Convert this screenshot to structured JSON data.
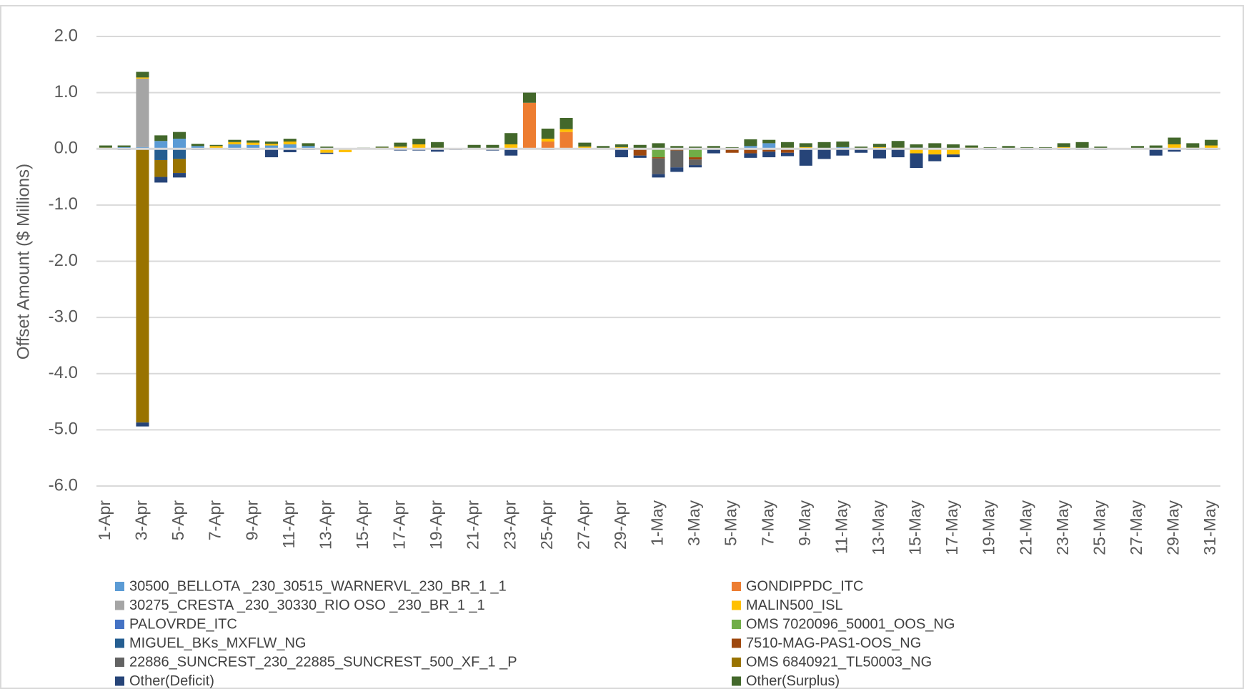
{
  "chart_data": {
    "type": "stacked_bar",
    "y_label": "Offset Amount ($ Millions)",
    "categories": [
      "1-Apr",
      null,
      "3-Apr",
      null,
      "5-Apr",
      null,
      "7-Apr",
      null,
      "9-Apr",
      null,
      "11-Apr",
      null,
      "13-Apr",
      null,
      "15-Apr",
      null,
      "17-Apr",
      null,
      "19-Apr",
      null,
      "21-Apr",
      null,
      "23-Apr",
      null,
      "25-Apr",
      null,
      "27-Apr",
      null,
      "29-Apr",
      null,
      "1-May",
      null,
      "3-May",
      null,
      "5-May",
      null,
      "7-May",
      null,
      "9-May",
      null,
      "11-May",
      null,
      "13-May",
      null,
      "15-May",
      null,
      "17-May",
      null,
      "19-May",
      null,
      "21-May",
      null,
      "23-May",
      null,
      "25-May",
      null,
      "27-May",
      null,
      "29-May",
      null,
      "31-May"
    ],
    "ylim": [
      -6,
      2
    ],
    "yticks": [
      {
        "value": -6,
        "label": "-6.0"
      },
      {
        "value": -5,
        "label": "-5.0"
      },
      {
        "value": -4,
        "label": "-4.0"
      },
      {
        "value": -3,
        "label": "-3.0"
      },
      {
        "value": -2,
        "label": "-2.0"
      },
      {
        "value": -1,
        "label": "-1.0"
      },
      {
        "value": 0,
        "label": "0.0"
      },
      {
        "value": 1,
        "label": "1.0"
      },
      {
        "value": 2,
        "label": "2.0"
      }
    ],
    "grid": true,
    "legend": "bottom",
    "series": [
      {
        "name": "30500_BELLOTA _230_30515_WARNERVL_230_BR_1 _1",
        "color": "#5b9bd5",
        "values": [
          0,
          0.03,
          0.03,
          0.14,
          0.18,
          0.05,
          0,
          0.08,
          0.07,
          0.06,
          0.08,
          0.05,
          0,
          0,
          0,
          0,
          0,
          0,
          0,
          0,
          0,
          0,
          0,
          0,
          0,
          0,
          0,
          0,
          0,
          0,
          0,
          0,
          0,
          0,
          0,
          0.05,
          0.1,
          0,
          0,
          0,
          0.03,
          0,
          0,
          0,
          0.02,
          0,
          0,
          0,
          0,
          0,
          0,
          0,
          0,
          0,
          0,
          0,
          0,
          0,
          0,
          0,
          0
        ]
      },
      {
        "name": "GONDIPPDC_ITC",
        "color": "#ed7d31",
        "values": [
          0,
          0,
          0,
          0,
          0,
          0,
          0,
          0,
          0,
          0,
          0,
          0,
          0,
          0,
          0,
          0,
          0,
          0,
          0,
          0,
          0,
          0,
          0,
          0.82,
          0.13,
          0.3,
          0,
          0,
          0,
          0,
          0,
          0,
          0,
          0,
          0,
          0,
          0,
          0,
          0,
          0,
          0,
          0,
          0,
          0,
          0,
          0,
          0,
          0,
          0,
          0,
          0,
          0,
          0,
          0,
          0,
          0,
          0,
          0,
          0,
          0,
          0
        ]
      },
      {
        "name": "30275_CRESTA  _230_30330_RIO OSO _230_BR_1 _1",
        "color": "#a5a5a5",
        "values": [
          0,
          0,
          1.22,
          0,
          0,
          0,
          0,
          0,
          0,
          0,
          0,
          0,
          0,
          0,
          0,
          0,
          0,
          0,
          0,
          0,
          0,
          0,
          0,
          0,
          0,
          0,
          0,
          0,
          0,
          0,
          0,
          0,
          0,
          0,
          0,
          0,
          0,
          0,
          0,
          0,
          0,
          0,
          0,
          0,
          0,
          0,
          0,
          0,
          0,
          0,
          0,
          0,
          0,
          0,
          0,
          0,
          0,
          0,
          0,
          0,
          0
        ]
      },
      {
        "name": "MALIN500_ISL",
        "color": "#ffc000",
        "values": [
          0.02,
          0,
          0.02,
          0,
          0,
          0,
          0.05,
          0.04,
          0.04,
          0.03,
          0.05,
          0,
          -0.07,
          -0.06,
          0,
          0.02,
          0.04,
          0.08,
          0.02,
          0,
          0,
          0,
          0.08,
          0,
          0.05,
          0.05,
          0.04,
          0,
          0.03,
          0,
          0,
          0,
          0,
          0,
          0,
          0,
          0,
          0.02,
          0.03,
          0,
          0,
          0,
          0.03,
          0.02,
          -0.08,
          -0.1,
          -0.1,
          0.02,
          0,
          0,
          0,
          0,
          0.03,
          0,
          0,
          0,
          0,
          0,
          0.08,
          0.02,
          0.06
        ]
      },
      {
        "name": "PALOVRDE_ITC",
        "color": "#4472c4",
        "values": [
          0,
          0,
          0,
          0,
          0,
          0,
          0,
          0,
          0,
          0,
          0,
          0,
          0,
          0,
          0,
          0,
          0,
          0,
          0,
          0,
          0,
          0,
          0,
          0,
          0,
          0,
          0,
          0,
          0,
          0,
          0,
          0,
          0,
          0,
          0,
          0,
          0,
          0,
          0,
          0,
          0,
          0,
          0,
          0,
          0,
          0,
          0,
          0,
          0,
          0,
          0,
          0,
          0,
          0,
          0,
          0,
          0,
          0,
          0,
          0,
          0
        ]
      },
      {
        "name": "OMS 7020096_50001_OOS_NG",
        "color": "#70ad47",
        "values": [
          0,
          0,
          0,
          0,
          0,
          0,
          0,
          0,
          0,
          0,
          0,
          0,
          0,
          0,
          0,
          0,
          0,
          0,
          0,
          0,
          0,
          0,
          0,
          0,
          0,
          0,
          0,
          0,
          0,
          0,
          -0.15,
          0,
          -0.15,
          0,
          0,
          0,
          0,
          0,
          0,
          0,
          0,
          0,
          0,
          0,
          0,
          0,
          0,
          0,
          0,
          0,
          0,
          0,
          0,
          0,
          0,
          0,
          0,
          0,
          0,
          0,
          0
        ]
      },
      {
        "name": "MIGUEL_BKs_MXFLW_NG",
        "color": "#255e91",
        "values": [
          0,
          0,
          0,
          -0.2,
          -0.18,
          0,
          0,
          0,
          0,
          0,
          0,
          0,
          0,
          0,
          0,
          0,
          0,
          0,
          0,
          0,
          0,
          0,
          0,
          0,
          0,
          0,
          0,
          0,
          0,
          0,
          0,
          0,
          0,
          0,
          0,
          0,
          0,
          0,
          0,
          0,
          0,
          0,
          0,
          0,
          0,
          0,
          0,
          0,
          0,
          0,
          0,
          0,
          0,
          0,
          0,
          0,
          0,
          0,
          0,
          0,
          0
        ]
      },
      {
        "name": "7510-MAG-PAS1-OOS_NG",
        "color": "#9e480e",
        "values": [
          0,
          0,
          0,
          0,
          0,
          0,
          0,
          0,
          0,
          0,
          0,
          0,
          0,
          0,
          0,
          0,
          0,
          0,
          0,
          0,
          0,
          0,
          0,
          0,
          0,
          0,
          0,
          0,
          0,
          -0.12,
          -0.02,
          -0.03,
          -0.04,
          0,
          -0.07,
          -0.08,
          -0.05,
          -0.07,
          0,
          0,
          0,
          0,
          0,
          0,
          0,
          0,
          0,
          0,
          0,
          0,
          0,
          0,
          0,
          0,
          0,
          0,
          0,
          0,
          0,
          0,
          0
        ]
      },
      {
        "name": "22886_SUNCREST_230_22885_SUNCREST_500_XF_1 _P",
        "color": "#636363",
        "values": [
          0,
          0,
          0,
          0,
          0,
          0,
          0,
          0,
          0,
          0,
          0,
          0,
          0,
          0,
          0,
          0,
          0,
          0,
          0,
          0,
          0,
          0,
          0,
          0,
          0,
          0,
          0,
          0,
          0,
          0,
          -0.28,
          -0.3,
          -0.1,
          0,
          0,
          0,
          0,
          0,
          0,
          0,
          0,
          0,
          0,
          0,
          0,
          0,
          0,
          0,
          0,
          0,
          0,
          0,
          0,
          0,
          0,
          0,
          0,
          0,
          0,
          0,
          0
        ]
      },
      {
        "name": "OMS 6840921_TL50003_NG",
        "color": "#997300",
        "values": [
          0,
          0,
          -4.87,
          -0.3,
          -0.25,
          0,
          0,
          0,
          0,
          0,
          0,
          0,
          0,
          0,
          0,
          0,
          0,
          0,
          0,
          0,
          0,
          0,
          0,
          0,
          0,
          0,
          0,
          0,
          0,
          0,
          0,
          0,
          0,
          0,
          0,
          0,
          0,
          0,
          0,
          0,
          0,
          0,
          0,
          0,
          0,
          0,
          0,
          0,
          0,
          0,
          0,
          0,
          0,
          0,
          0,
          0,
          0,
          0,
          0,
          0,
          0
        ]
      },
      {
        "name": "Other(Deficit)",
        "color": "#264478",
        "values": [
          0,
          -0.02,
          -0.07,
          -0.1,
          -0.08,
          -0.02,
          0,
          -0.02,
          -0.02,
          -0.15,
          -0.06,
          -0.02,
          -0.02,
          0,
          0,
          0,
          -0.03,
          -0.03,
          -0.05,
          -0.02,
          -0.01,
          -0.03,
          -0.12,
          0,
          -0.02,
          0,
          0,
          0,
          -0.15,
          -0.04,
          -0.06,
          -0.08,
          -0.04,
          -0.08,
          0,
          -0.08,
          -0.1,
          -0.06,
          -0.3,
          -0.18,
          -0.12,
          -0.07,
          -0.17,
          -0.15,
          -0.26,
          -0.12,
          -0.05,
          -0.02,
          -0.02,
          -0.02,
          -0.02,
          -0.02,
          -0.02,
          -0.02,
          -0.02,
          0,
          0,
          -0.12,
          -0.05,
          -0.02,
          -0.02
        ]
      },
      {
        "name": "Other(Surplus)",
        "color": "#43682b",
        "values": [
          0.04,
          0.03,
          0.1,
          0.1,
          0.12,
          0.04,
          0.02,
          0.04,
          0.04,
          0.04,
          0.05,
          0.05,
          0.04,
          0.01,
          0.02,
          0.02,
          0.07,
          0.1,
          0.1,
          0,
          0.07,
          0.07,
          0.2,
          0.18,
          0.18,
          0.2,
          0.07,
          0.05,
          0.05,
          0.07,
          0.1,
          0.05,
          0.04,
          0.05,
          0.03,
          0.12,
          0.06,
          0.1,
          0.07,
          0.12,
          0.1,
          0.04,
          0.06,
          0.12,
          0.06,
          0.1,
          0.08,
          0.04,
          0.03,
          0.05,
          0.03,
          0.03,
          0.07,
          0.12,
          0.04,
          0,
          0.05,
          0.06,
          0.12,
          0.08,
          0.1
        ]
      }
    ]
  }
}
